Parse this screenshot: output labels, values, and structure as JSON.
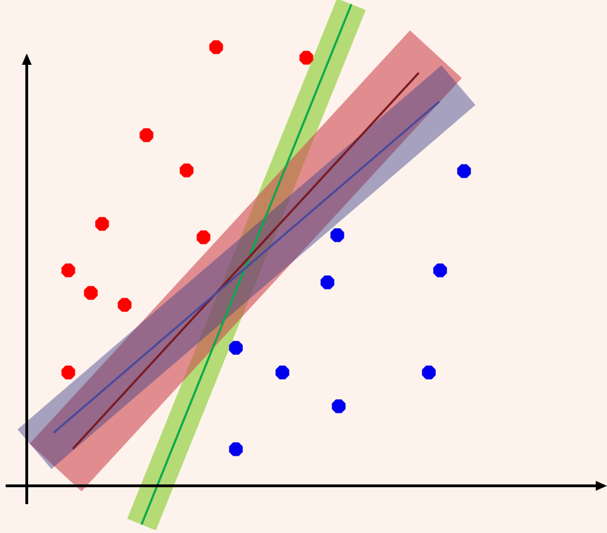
{
  "colors": {
    "background": "#fef3ec",
    "axis": "#000000",
    "class_a": "#ff0000",
    "class_b": "#0000ee",
    "margin_green_band": "#9bd34f",
    "margin_green_line": "#0aa84f",
    "margin_red_band": "#cd4a51",
    "margin_red_line": "#7a1a20",
    "margin_blue_band": "#3b3f88",
    "margin_blue_line": "#4a4a9a"
  },
  "chart_data": {
    "type": "scatter",
    "title": "",
    "xlabel": "",
    "ylabel": "",
    "xlim": [
      0,
      820
    ],
    "ylim": [
      0,
      620
    ],
    "grid": false,
    "series": [
      {
        "class": "a",
        "color": "#ff0000",
        "points": [
          [
            269,
            623
          ],
          [
            397,
            608
          ],
          [
            170,
            498
          ],
          [
            227,
            448
          ],
          [
            107,
            372
          ],
          [
            251,
            353
          ],
          [
            59,
            306
          ],
          [
            91,
            274
          ],
          [
            139,
            257
          ],
          [
            59,
            161
          ]
        ]
      },
      {
        "class": "b",
        "color": "#0000ee",
        "points": [
          [
            621,
            447
          ],
          [
            441,
            356
          ],
          [
            587,
            306
          ],
          [
            427,
            289
          ],
          [
            297,
            196
          ],
          [
            363,
            161
          ],
          [
            571,
            161
          ],
          [
            443,
            113
          ],
          [
            297,
            52
          ]
        ]
      }
    ],
    "separators": [
      {
        "color": "green",
        "from": [
          163,
          -55
        ],
        "to": [
          461,
          684
        ],
        "band_half_width": 22
      },
      {
        "color": "red",
        "from": [
          41,
          26
        ],
        "to": [
          581,
          613
        ],
        "band_half_width": 50
      },
      {
        "color": "blue",
        "from": [
          11,
          52
        ],
        "to": [
          613,
          569
        ],
        "band_half_width": 37
      }
    ]
  }
}
